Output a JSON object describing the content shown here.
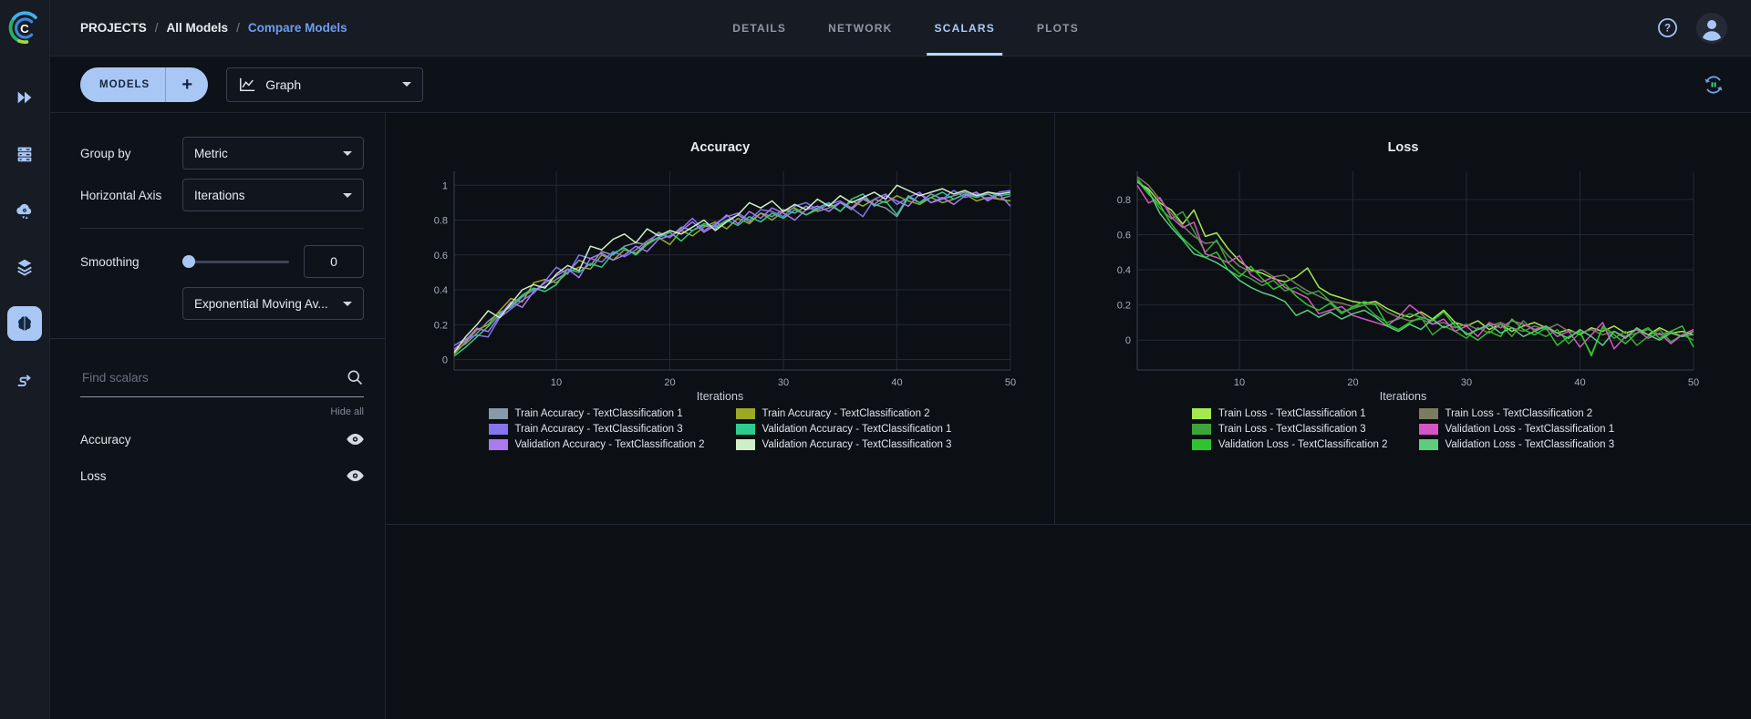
{
  "header": {
    "breadcrumb": {
      "root": "PROJECTS",
      "separator": "/",
      "items": [
        "All Models",
        "Compare Models"
      ]
    },
    "tabs": [
      {
        "label": "DETAILS",
        "active": false
      },
      {
        "label": "NETWORK",
        "active": false
      },
      {
        "label": "SCALARS",
        "active": true
      },
      {
        "label": "PLOTS",
        "active": false
      }
    ],
    "icons": [
      "help-icon",
      "user-avatar"
    ]
  },
  "toolbar": {
    "models_label": "MODELS",
    "add_label": "+",
    "view_dropdown_value": "Graph",
    "view_dropdown_icon": "line-chart-icon",
    "refresh_icon": "auto-refresh-icon"
  },
  "nav_rail": {
    "icons": [
      {
        "name": "projects-icon",
        "active": false
      },
      {
        "name": "workers-queues-icon",
        "active": false
      },
      {
        "name": "cloud-icon",
        "active": false
      },
      {
        "name": "datasets-icon",
        "active": false
      },
      {
        "name": "models-icon",
        "active": true
      },
      {
        "name": "pipelines-icon",
        "active": false
      }
    ]
  },
  "settings_panel": {
    "group_by_label": "Group by",
    "group_by_value": "Metric",
    "horizontal_axis_label": "Horizontal Axis",
    "horizontal_axis_value": "Iterations",
    "smoothing_label": "Smoothing",
    "smoothing_value": "0",
    "smoothing_type_value": "Exponential Moving Av...",
    "search_placeholder": "Find scalars",
    "hide_all_label": "Hide all",
    "scalars": [
      {
        "label": "Accuracy"
      },
      {
        "label": "Loss"
      }
    ]
  },
  "colors": {
    "accent": "#a9c7f5",
    "link_blue": "#6e9ded",
    "active_tab": "#aecbf5",
    "page_background": "#0c0f14",
    "header_background": "#161b24",
    "panel_background": "#0e1219",
    "border": "#1f2630"
  },
  "chart_data": [
    {
      "type": "line",
      "title": "Accuracy",
      "xlabel": "Iterations",
      "x_start": 1,
      "x_end": 50,
      "x_ticks": [
        10,
        20,
        30,
        40,
        50
      ],
      "y_ticks": [
        1,
        0.8,
        0.6,
        0.4,
        0.2,
        0
      ],
      "ylim": [
        -0.06,
        1.08
      ],
      "grid": true,
      "legend_position": "bottom",
      "series": [
        {
          "name": "Train Accuracy - TextClassification 1",
          "color": "#8799aa",
          "values": [
            0.05,
            0.09,
            0.15,
            0.22,
            0.27,
            0.3,
            0.36,
            0.4,
            0.42,
            0.46,
            0.5,
            0.57,
            0.54,
            0.62,
            0.6,
            0.65,
            0.67,
            0.66,
            0.73,
            0.7,
            0.76,
            0.74,
            0.77,
            0.75,
            0.8,
            0.83,
            0.79,
            0.84,
            0.82,
            0.86,
            0.84,
            0.88,
            0.85,
            0.87,
            0.9,
            0.86,
            0.92,
            0.89,
            0.87,
            0.82,
            0.93,
            0.9,
            0.95,
            0.92,
            0.94,
            0.96,
            0.93,
            0.95,
            0.92,
            0.94
          ]
        },
        {
          "name": "Train Accuracy - TextClassification 2",
          "color": "#9aa824",
          "values": [
            0.03,
            0.1,
            0.17,
            0.2,
            0.28,
            0.35,
            0.33,
            0.44,
            0.46,
            0.44,
            0.5,
            0.53,
            0.52,
            0.6,
            0.57,
            0.63,
            0.61,
            0.67,
            0.7,
            0.66,
            0.74,
            0.71,
            0.76,
            0.79,
            0.75,
            0.81,
            0.78,
            0.84,
            0.8,
            0.85,
            0.87,
            0.83,
            0.86,
            0.89,
            0.85,
            0.91,
            0.88,
            0.92,
            0.9,
            0.94,
            0.91,
            0.89,
            0.93,
            0.9,
            0.92,
            0.95,
            0.91,
            0.93,
            0.92,
            0.91
          ]
        },
        {
          "name": "Train Accuracy - TextClassification 3",
          "color": "#8474f0",
          "values": [
            0.08,
            0.12,
            0.14,
            0.13,
            0.24,
            0.29,
            0.34,
            0.38,
            0.45,
            0.53,
            0.49,
            0.6,
            0.58,
            0.56,
            0.62,
            0.59,
            0.63,
            0.68,
            0.72,
            0.7,
            0.75,
            0.81,
            0.74,
            0.78,
            0.82,
            0.84,
            0.8,
            0.86,
            0.85,
            0.82,
            0.88,
            0.9,
            0.86,
            0.89,
            0.91,
            0.87,
            0.82,
            0.92,
            0.95,
            0.89,
            0.93,
            0.96,
            0.9,
            0.92,
            0.97,
            0.93,
            0.95,
            0.92,
            0.96,
            0.97
          ]
        },
        {
          "name": "Validation Accuracy - TextClassification 1",
          "color": "#2dcb8f",
          "values": [
            0.02,
            0.07,
            0.13,
            0.19,
            0.26,
            0.31,
            0.37,
            0.41,
            0.39,
            0.43,
            0.52,
            0.5,
            0.55,
            0.53,
            0.61,
            0.64,
            0.6,
            0.66,
            0.7,
            0.73,
            0.68,
            0.74,
            0.78,
            0.76,
            0.8,
            0.77,
            0.82,
            0.79,
            0.84,
            0.81,
            0.86,
            0.83,
            0.87,
            0.9,
            0.85,
            0.92,
            0.95,
            0.88,
            0.91,
            0.83,
            0.94,
            0.9,
            0.93,
            0.96,
            0.92,
            0.95,
            0.93,
            0.96,
            0.94,
            0.95
          ]
        },
        {
          "name": "Validation Accuracy - TextClassification 2",
          "color": "#ab79f0",
          "values": [
            0.06,
            0.11,
            0.18,
            0.16,
            0.25,
            0.33,
            0.3,
            0.39,
            0.44,
            0.48,
            0.52,
            0.47,
            0.58,
            0.61,
            0.57,
            0.6,
            0.65,
            0.62,
            0.69,
            0.71,
            0.74,
            0.79,
            0.73,
            0.77,
            0.83,
            0.78,
            0.85,
            0.81,
            0.87,
            0.84,
            0.8,
            0.86,
            0.88,
            0.85,
            0.9,
            0.87,
            0.93,
            0.89,
            0.94,
            0.91,
            0.88,
            0.95,
            0.9,
            0.93,
            0.89,
            0.94,
            0.96,
            0.91,
            0.95,
            0.88
          ]
        },
        {
          "name": "Validation Accuracy - TextClassification 3",
          "color": "#cfeec5",
          "values": [
            0.04,
            0.13,
            0.2,
            0.28,
            0.24,
            0.32,
            0.4,
            0.43,
            0.41,
            0.49,
            0.54,
            0.51,
            0.65,
            0.63,
            0.69,
            0.72,
            0.67,
            0.75,
            0.71,
            0.74,
            0.72,
            0.76,
            0.8,
            0.74,
            0.79,
            0.83,
            0.9,
            0.87,
            0.91,
            0.85,
            0.89,
            0.86,
            0.92,
            0.88,
            0.94,
            0.9,
            0.93,
            0.96,
            0.92,
            1.0,
            0.97,
            0.94,
            0.96,
            0.98,
            0.95,
            0.97,
            0.94,
            0.96,
            0.95,
            0.96
          ]
        }
      ]
    },
    {
      "type": "line",
      "title": "Loss",
      "xlabel": "Iterations",
      "x_start": 1,
      "x_end": 50,
      "x_ticks": [
        10,
        20,
        30,
        40,
        50
      ],
      "y_ticks": [
        0.8,
        0.6,
        0.4,
        0.2,
        0
      ],
      "ylim": [
        -0.17,
        0.96
      ],
      "grid": true,
      "legend_position": "bottom",
      "series": [
        {
          "name": "Train Loss - TextClassification 1",
          "color": "#a5e94f",
          "values": [
            0.9,
            0.86,
            0.78,
            0.74,
            0.66,
            0.74,
            0.59,
            0.61,
            0.52,
            0.45,
            0.4,
            0.38,
            0.35,
            0.33,
            0.36,
            0.41,
            0.3,
            0.26,
            0.24,
            0.22,
            0.21,
            0.22,
            0.18,
            0.15,
            0.13,
            0.16,
            0.12,
            0.17,
            0.1,
            0.08,
            0.11,
            0.06,
            0.09,
            0.05,
            0.08,
            0.1,
            0.07,
            0.04,
            0.06,
            0.03,
            0.07,
            0.05,
            0.08,
            0.04,
            0.06,
            0.03,
            0.07,
            0.04,
            0.05,
            0.03
          ]
        },
        {
          "name": "Train Loss - TextClassification 2",
          "color": "#7c7c60",
          "values": [
            0.93,
            0.88,
            0.8,
            0.72,
            0.65,
            0.59,
            0.55,
            0.56,
            0.48,
            0.42,
            0.39,
            0.4,
            0.36,
            0.37,
            0.32,
            0.28,
            0.25,
            0.22,
            0.21,
            0.19,
            0.2,
            0.21,
            0.16,
            0.13,
            0.11,
            0.12,
            0.09,
            0.1,
            0.07,
            0.09,
            0.06,
            0.08,
            0.1,
            0.07,
            0.05,
            0.08,
            0.06,
            0.09,
            0.05,
            0.04,
            0.06,
            0.03,
            0.05,
            0.02,
            0.04,
            0.06,
            0.03,
            0.05,
            0.02,
            0.03
          ]
        },
        {
          "name": "Train Loss - TextClassification 3",
          "color": "#3ca53a",
          "values": [
            0.92,
            0.84,
            0.75,
            0.69,
            0.73,
            0.62,
            0.5,
            0.57,
            0.44,
            0.38,
            0.35,
            0.31,
            0.34,
            0.28,
            0.3,
            0.26,
            0.28,
            0.22,
            0.16,
            0.18,
            0.2,
            0.14,
            0.1,
            0.12,
            0.15,
            0.13,
            0.03,
            0.08,
            0.05,
            0.01,
            0.07,
            0.04,
            0.09,
            0.02,
            0.11,
            0.05,
            0.02,
            0.06,
            -0.02,
            0.04,
            -0.08,
            0.07,
            0.01,
            0.05,
            -0.03,
            0.02,
            0.06,
            -0.01,
            0.03,
            0.0
          ]
        },
        {
          "name": "Validation Loss - TextClassification 1",
          "color": "#d456c6",
          "values": [
            0.88,
            0.78,
            0.81,
            0.7,
            0.64,
            0.67,
            0.49,
            0.47,
            0.44,
            0.48,
            0.37,
            0.33,
            0.36,
            0.3,
            0.27,
            0.24,
            0.15,
            0.17,
            0.19,
            0.14,
            0.12,
            0.1,
            0.08,
            0.13,
            0.2,
            0.15,
            0.09,
            0.12,
            0.05,
            0.08,
            0.02,
            0.1,
            0.07,
            0.11,
            0.09,
            0.06,
            0.08,
            0.02,
            0.05,
            -0.04,
            0.03,
            0.1,
            -0.05,
            0.02,
            0.06,
            0.01,
            0.04,
            -0.02,
            0.03,
            0.06
          ]
        },
        {
          "name": "Validation Loss - TextClassification 2",
          "color": "#2fc42f",
          "values": [
            0.91,
            0.83,
            0.77,
            0.66,
            0.58,
            0.52,
            0.47,
            0.5,
            0.4,
            0.36,
            0.42,
            0.35,
            0.29,
            0.32,
            0.25,
            0.2,
            0.17,
            0.21,
            0.15,
            0.19,
            0.22,
            0.2,
            0.09,
            0.06,
            0.1,
            0.13,
            0.11,
            0.16,
            0.08,
            0.04,
            0.0,
            0.05,
            0.02,
            0.12,
            0.06,
            0.03,
            0.07,
            -0.03,
            0.02,
            0.05,
            -0.09,
            0.08,
            0.03,
            -0.02,
            0.04,
            0.07,
            0.01,
            0.05,
            0.08,
            -0.04
          ]
        },
        {
          "name": "Validation Loss - TextClassification 3",
          "color": "#5bcd7c",
          "values": [
            0.9,
            0.85,
            0.72,
            0.64,
            0.57,
            0.49,
            0.47,
            0.44,
            0.4,
            0.34,
            0.3,
            0.27,
            0.25,
            0.22,
            0.14,
            0.17,
            0.13,
            0.16,
            0.12,
            0.15,
            0.17,
            0.13,
            0.08,
            0.05,
            0.09,
            0.06,
            0.12,
            0.07,
            0.1,
            0.03,
            0.06,
            0.09,
            0.04,
            0.07,
            0.02,
            0.05,
            0.08,
            0.04,
            0.01,
            0.06,
            0.02,
            -0.03,
            0.05,
            0.01,
            0.07,
            0.03,
            0.0,
            0.04,
            0.02,
            0.05
          ]
        }
      ]
    }
  ]
}
